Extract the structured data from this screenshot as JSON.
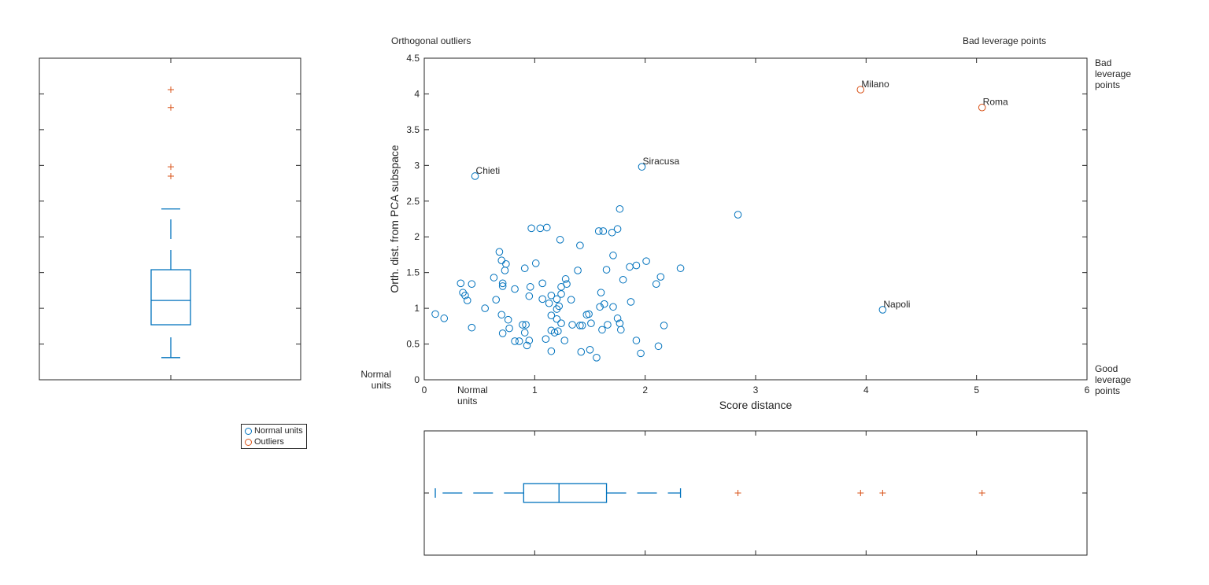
{
  "colors": {
    "normal": "#0072BD",
    "outlier": "#D95319",
    "axis": "#262626"
  },
  "legend": {
    "placement": "below-left-plot",
    "items": [
      {
        "label": "Normal units",
        "marker": "circle",
        "color": "#0072BD"
      },
      {
        "label": "Outliers",
        "marker": "circle",
        "color": "#D95319"
      }
    ]
  },
  "chart_data": [
    {
      "type": "scatter",
      "title": "",
      "xlabel": "Score distance",
      "ylabel": "Orth. dist. from PCA subspace",
      "xlim": [
        0,
        6
      ],
      "ylim": [
        0,
        4.5
      ],
      "xticks": [
        "0",
        "1",
        "2",
        "3",
        "4",
        "5",
        "6"
      ],
      "yticks": [
        "0",
        "0.5",
        "1",
        "1.5",
        "2",
        "2.5",
        "3",
        "3.5",
        "4",
        "4.5"
      ],
      "grid": false,
      "region_labels": {
        "top_left": "Orthogonal outliers",
        "top_right": "Bad leverage points",
        "right_top": "Bad leverage points",
        "right_bottom": "Good leverage points",
        "left_bottom": "Normal units",
        "bottom_left": "Normal units"
      },
      "series": [
        {
          "name": "Normal units",
          "color": "#0072BD",
          "points": [
            [
              0.1,
              0.92
            ],
            [
              0.18,
              0.86
            ],
            [
              0.33,
              1.35
            ],
            [
              0.35,
              1.22
            ],
            [
              0.37,
              1.18
            ],
            [
              0.39,
              1.11
            ],
            [
              0.43,
              1.34
            ],
            [
              0.43,
              0.73
            ],
            [
              0.55,
              1.0
            ],
            [
              0.63,
              1.43
            ],
            [
              0.65,
              1.12
            ],
            [
              0.68,
              1.79
            ],
            [
              0.7,
              1.67
            ],
            [
              0.7,
              0.91
            ],
            [
              0.71,
              0.65
            ],
            [
              0.71,
              1.35
            ],
            [
              0.71,
              1.31
            ],
            [
              0.74,
              1.62
            ],
            [
              0.73,
              1.53
            ],
            [
              0.76,
              0.84
            ],
            [
              0.77,
              0.72
            ],
            [
              0.82,
              1.27
            ],
            [
              0.82,
              0.54
            ],
            [
              0.86,
              0.54
            ],
            [
              0.89,
              0.77
            ],
            [
              0.92,
              0.77
            ],
            [
              0.91,
              1.56
            ],
            [
              0.91,
              0.66
            ],
            [
              0.93,
              0.48
            ],
            [
              0.95,
              0.55
            ],
            [
              0.95,
              1.17
            ],
            [
              0.97,
              2.12
            ],
            [
              0.96,
              1.3
            ],
            [
              1.01,
              1.63
            ],
            [
              1.05,
              2.12
            ],
            [
              1.07,
              1.35
            ],
            [
              1.07,
              1.13
            ],
            [
              1.11,
              2.13
            ],
            [
              1.1,
              0.57
            ],
            [
              1.13,
              1.07
            ],
            [
              1.15,
              0.69
            ],
            [
              1.15,
              1.18
            ],
            [
              1.15,
              0.9
            ],
            [
              1.15,
              0.4
            ],
            [
              1.18,
              0.66
            ],
            [
              1.2,
              1.13
            ],
            [
              1.2,
              0.99
            ],
            [
              1.2,
              0.85
            ],
            [
              1.21,
              0.68
            ],
            [
              1.22,
              1.03
            ],
            [
              1.23,
              1.96
            ],
            [
              1.24,
              1.3
            ],
            [
              1.24,
              1.2
            ],
            [
              1.24,
              0.79
            ],
            [
              1.27,
              0.55
            ],
            [
              1.28,
              1.41
            ],
            [
              1.29,
              1.34
            ],
            [
              1.33,
              1.12
            ],
            [
              1.34,
              0.77
            ],
            [
              1.39,
              1.53
            ],
            [
              1.41,
              1.88
            ],
            [
              1.41,
              0.76
            ],
            [
              1.42,
              0.39
            ],
            [
              1.43,
              0.76
            ],
            [
              1.47,
              0.91
            ],
            [
              1.49,
              0.92
            ],
            [
              1.5,
              0.42
            ],
            [
              1.51,
              0.79
            ],
            [
              1.56,
              0.31
            ],
            [
              1.58,
              2.08
            ],
            [
              1.6,
              1.22
            ],
            [
              1.59,
              1.02
            ],
            [
              1.61,
              0.7
            ],
            [
              1.62,
              2.08
            ],
            [
              1.63,
              1.06
            ],
            [
              1.65,
              1.54
            ],
            [
              1.66,
              0.77
            ],
            [
              1.7,
              2.06
            ],
            [
              1.71,
              1.74
            ],
            [
              1.71,
              1.02
            ],
            [
              1.75,
              0.86
            ],
            [
              1.75,
              2.11
            ],
            [
              1.77,
              2.39
            ],
            [
              1.77,
              0.79
            ],
            [
              1.78,
              0.7
            ],
            [
              1.8,
              1.4
            ],
            [
              1.87,
              1.09
            ],
            [
              1.86,
              1.58
            ],
            [
              1.92,
              1.6
            ],
            [
              1.92,
              0.55
            ],
            [
              1.96,
              0.37
            ],
            [
              2.01,
              1.66
            ],
            [
              2.1,
              1.34
            ],
            [
              2.14,
              1.44
            ],
            [
              2.12,
              0.47
            ],
            [
              2.17,
              0.76
            ],
            [
              2.32,
              1.56
            ],
            [
              2.84,
              2.31
            ]
          ],
          "labeled_points": [
            {
              "label": "Chieti",
              "x": 0.46,
              "y": 2.85
            },
            {
              "label": "Siracusa",
              "x": 1.97,
              "y": 2.98
            },
            {
              "label": "Napoli",
              "x": 4.15,
              "y": 0.98
            }
          ]
        },
        {
          "name": "Outliers",
          "color": "#D95319",
          "points": [],
          "labeled_points": [
            {
              "label": "Milano",
              "x": 3.95,
              "y": 4.06
            },
            {
              "label": "Roma",
              "x": 5.05,
              "y": 3.81
            }
          ]
        }
      ]
    },
    {
      "type": "boxplot",
      "orientation": "vertical",
      "variable": "Orth. dist. from PCA subspace",
      "ylim": [
        0,
        4.5
      ],
      "tick_labels_shown": false,
      "whisker_low": 0.31,
      "q1": 0.77,
      "median": 1.11,
      "q3": 1.54,
      "whisker_high": 2.39,
      "outliers": [
        4.06,
        3.81,
        2.98,
        2.85
      ]
    },
    {
      "type": "boxplot",
      "orientation": "horizontal",
      "variable": "Score distance",
      "xlim": [
        0,
        6
      ],
      "tick_labels_shown": false,
      "whisker_low": 0.1,
      "q1": 0.9,
      "median": 1.22,
      "q3": 1.65,
      "whisker_high": 2.32,
      "outliers": [
        2.84,
        3.95,
        4.15,
        5.05
      ]
    }
  ]
}
